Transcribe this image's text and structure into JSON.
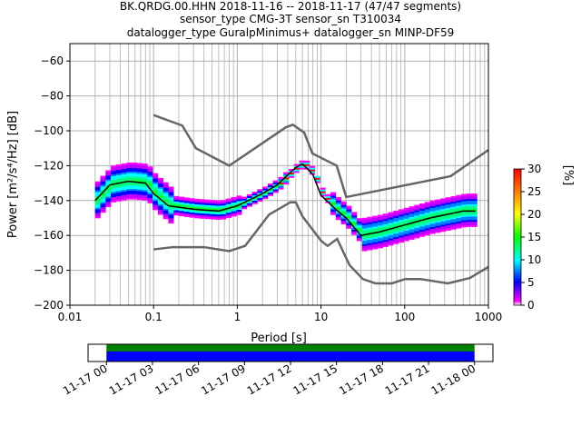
{
  "title_lines": [
    "BK.QRDG.00.HHN   2018-11-16 -- 2018-11-17  (47/47 segments)",
    "sensor_type CMG-3T sensor_sn T310034",
    "datalogger_type GuralpMinimus+ datalogger_sn MINP-DF59"
  ],
  "chart_data": {
    "type": "heatmap",
    "xlabel": "Period [s]",
    "ylabel": "Power [m²/s⁴/Hz] [dB]",
    "xscale": "log",
    "xlim": [
      0.01,
      1000
    ],
    "ylim": [
      -200,
      -50
    ],
    "xticks": [
      0.01,
      0.1,
      1,
      10,
      100,
      1000
    ],
    "xtick_labels": [
      "0.01",
      "0.1",
      "1",
      "10",
      "100",
      "1000"
    ],
    "yticks": [
      -60,
      -80,
      -100,
      -120,
      -140,
      -160,
      -180,
      -200
    ],
    "ytick_labels": [
      "−60",
      "−80",
      "−100",
      "−120",
      "−140",
      "−160",
      "−180",
      "−200"
    ],
    "grid": true,
    "colorbar": {
      "label": "[%]",
      "range": [
        0,
        30
      ],
      "ticks": [
        "0",
        "5",
        "10",
        "15",
        "20",
        "25",
        "30"
      ]
    },
    "median_curve": [
      [
        0.02,
        -140
      ],
      [
        0.03,
        -131
      ],
      [
        0.05,
        -129
      ],
      [
        0.08,
        -130
      ],
      [
        0.1,
        -136
      ],
      [
        0.15,
        -143
      ],
      [
        0.3,
        -145
      ],
      [
        0.6,
        -146
      ],
      [
        1,
        -143
      ],
      [
        2,
        -136
      ],
      [
        3,
        -131
      ],
      [
        5,
        -121
      ],
      [
        6,
        -119
      ],
      [
        8,
        -125
      ],
      [
        10,
        -137
      ],
      [
        15,
        -145
      ],
      [
        20,
        -150
      ],
      [
        30,
        -160
      ],
      [
        50,
        -158
      ],
      [
        100,
        -154
      ],
      [
        200,
        -150
      ],
      [
        500,
        -146
      ],
      [
        700,
        -146
      ]
    ],
    "nhnm": [
      [
        0.1,
        -91
      ],
      [
        0.22,
        -97
      ],
      [
        0.32,
        -110
      ],
      [
        0.8,
        -120
      ],
      [
        3.8,
        -98
      ],
      [
        4.6,
        -96.5
      ],
      [
        6.3,
        -101
      ],
      [
        7.9,
        -113
      ],
      [
        15.4,
        -120
      ],
      [
        20,
        -138
      ],
      [
        354,
        -126
      ],
      [
        1000,
        -111
      ]
    ],
    "nlnm": [
      [
        0.1,
        -168
      ],
      [
        0.17,
        -166.7
      ],
      [
        0.4,
        -166.7
      ],
      [
        0.8,
        -169
      ],
      [
        1.24,
        -166
      ],
      [
        2.4,
        -148
      ],
      [
        4.3,
        -141
      ],
      [
        5,
        -141
      ],
      [
        6,
        -149
      ],
      [
        10,
        -163
      ],
      [
        12,
        -166
      ],
      [
        15.6,
        -162
      ],
      [
        21.9,
        -177
      ],
      [
        31.6,
        -185
      ],
      [
        45,
        -187.5
      ],
      [
        70,
        -187.5
      ],
      [
        101,
        -185
      ],
      [
        154,
        -185
      ],
      [
        328,
        -187.5
      ],
      [
        600,
        -184.4
      ],
      [
        1000,
        -178
      ]
    ]
  },
  "timeline": {
    "tick_labels": [
      "11-17 00",
      "11-17 03",
      "11-17 06",
      "11-17 09",
      "11-17 12",
      "11-17 15",
      "11-17 18",
      "11-17 21",
      "11-18 00"
    ],
    "coverage_start_hours": 0,
    "coverage_end_hours": 24,
    "axis_range_hours": [
      -1.2,
      25.2
    ],
    "colors": {
      "top": "#008000",
      "bottom": "#0000ff"
    }
  }
}
